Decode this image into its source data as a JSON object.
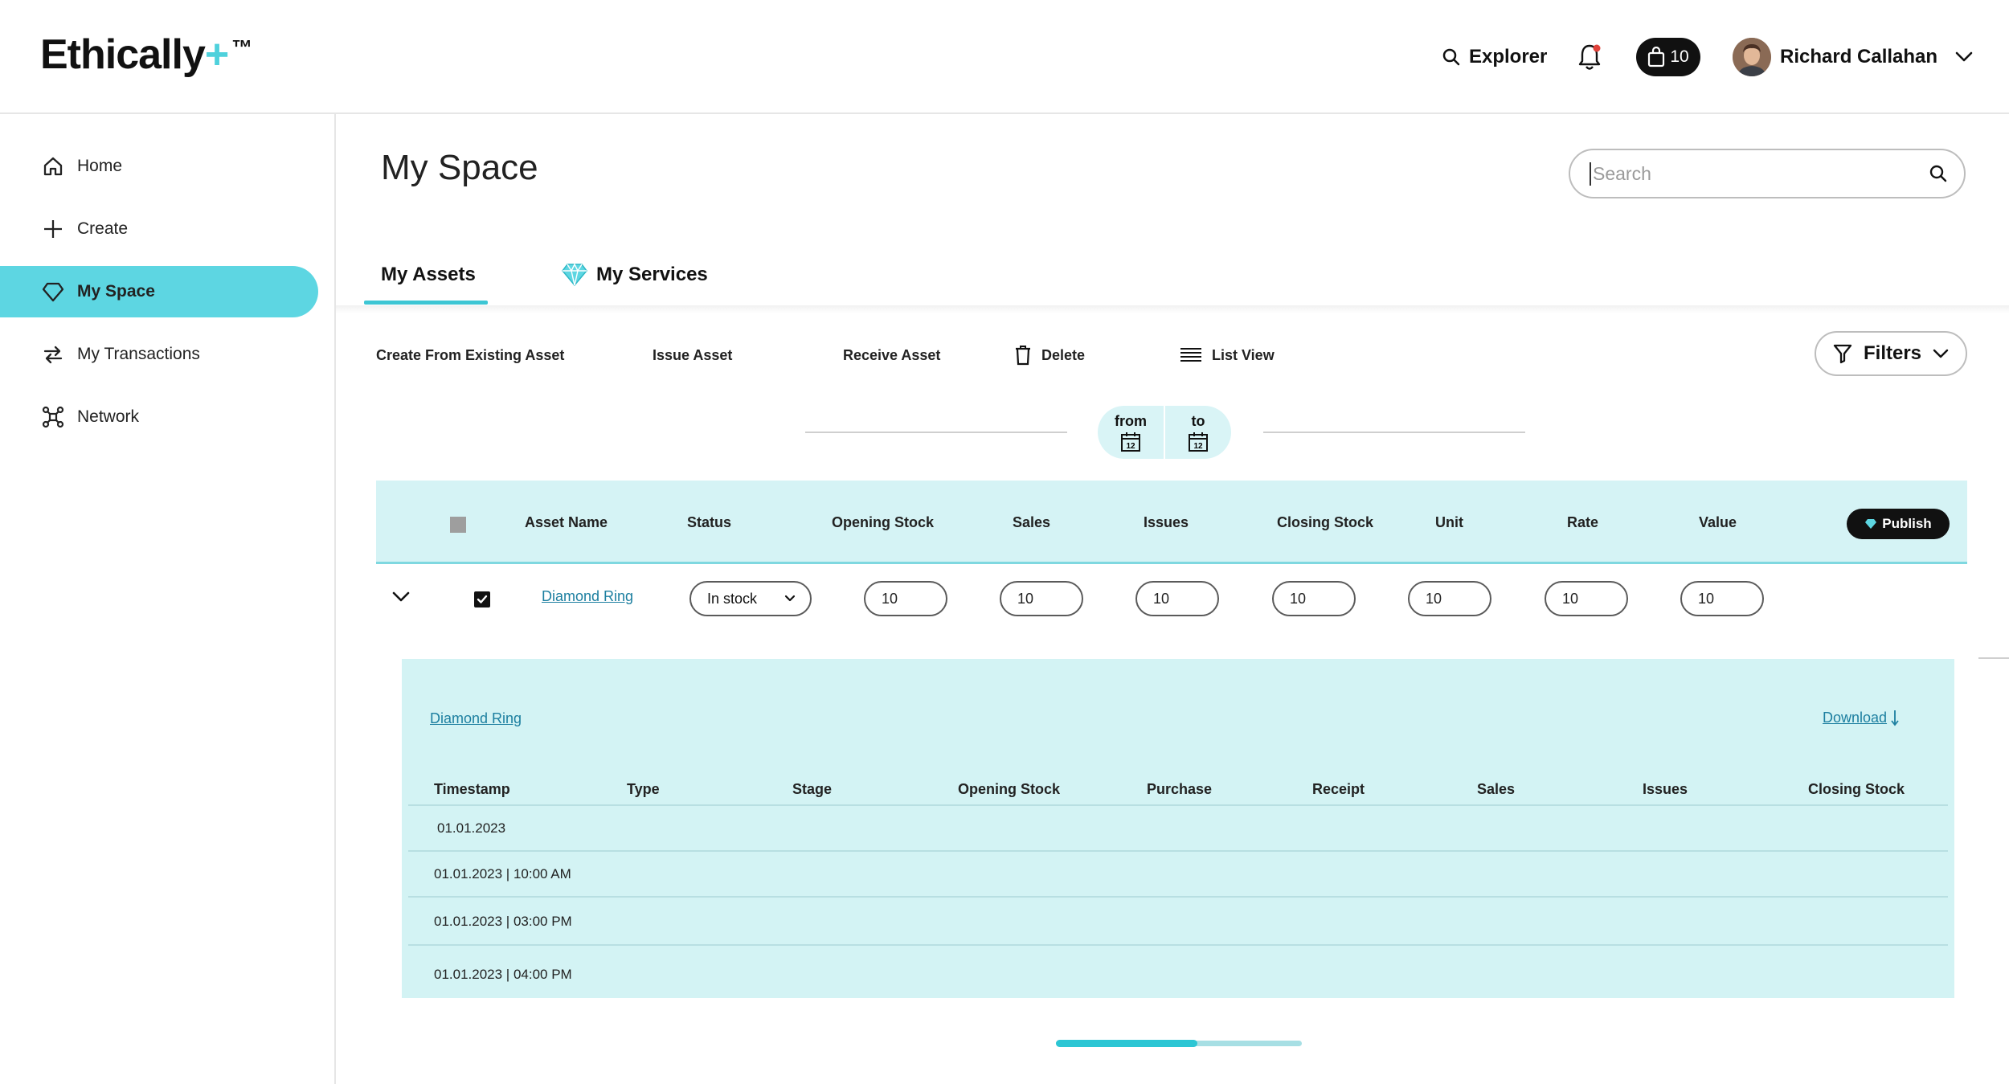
{
  "brand": {
    "name": "Ethically",
    "plus": "+",
    "tm": "™"
  },
  "header": {
    "explorer_label": "Explorer",
    "cart_count": "10",
    "user_name": "Richard Callahan"
  },
  "sidebar": {
    "items": [
      {
        "label": "Home",
        "icon": "home-icon"
      },
      {
        "label": "Create",
        "icon": "plus-icon"
      },
      {
        "label": "My Space",
        "icon": "diamond-icon",
        "active": true
      },
      {
        "label": "My Transactions",
        "icon": "swap-arrows-icon"
      },
      {
        "label": "Network",
        "icon": "network-icon"
      }
    ]
  },
  "main": {
    "title": "My Space",
    "search_placeholder": "Search",
    "tabs": [
      {
        "label": "My Assets",
        "active": true
      },
      {
        "label": "My Services",
        "active": false
      }
    ],
    "actions": {
      "create_from_existing": "Create From Existing Asset",
      "issue": "Issue Asset",
      "receive": "Receive Asset",
      "delete": "Delete",
      "list_view": "List View",
      "filters": "Filters"
    },
    "date_range": {
      "from_label": "from",
      "to_label": "to",
      "calendar_day": "12"
    }
  },
  "table": {
    "columns": [
      "Asset Name",
      "Status",
      "Opening Stock",
      "Sales",
      "Issues",
      "Closing Stock",
      "Unit",
      "Rate",
      "Value"
    ],
    "publish_label": "Publish",
    "rows": [
      {
        "asset_name": "Diamond Ring",
        "status": "In stock",
        "opening_stock": "10",
        "sales": "10",
        "issues": "10",
        "closing_stock": "10",
        "unit": "10",
        "rate": "10",
        "value": "10",
        "checked": true
      }
    ]
  },
  "detail": {
    "title": "Diamond Ring",
    "download_label": "Download",
    "columns": [
      "Timestamp",
      "Type",
      "Stage",
      "Opening Stock",
      "Purchase",
      "Receipt",
      "Sales",
      "Issues",
      "Closing Stock"
    ],
    "rows": [
      {
        "timestamp": "01.01.2023"
      },
      {
        "timestamp": "01.01.2023 | 10:00 AM"
      },
      {
        "timestamp": "01.01.2023 | 03:00 PM"
      },
      {
        "timestamp": "01.01.2023 | 04:00 PM"
      }
    ]
  },
  "colors": {
    "accent": "#5dd6e2",
    "link": "#1c7fa0",
    "table_bg": "#d5f3f5"
  }
}
